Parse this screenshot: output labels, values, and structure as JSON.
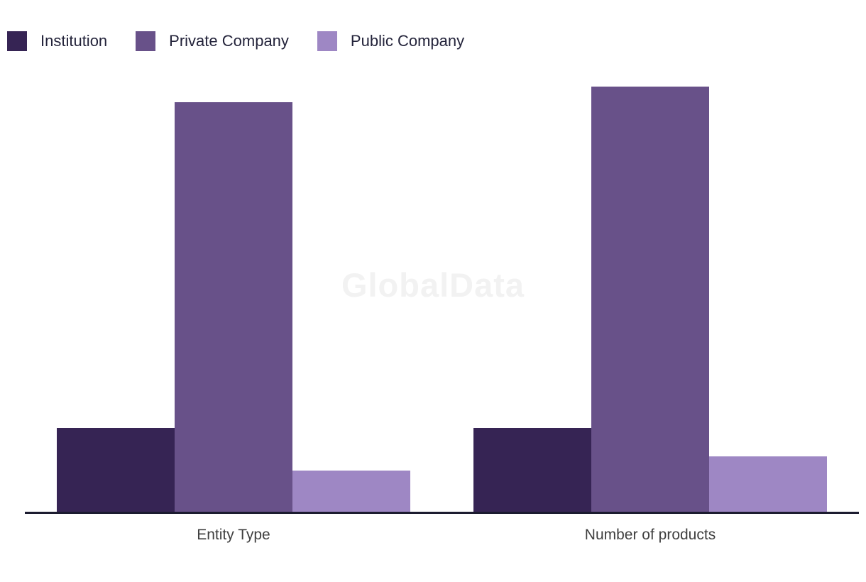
{
  "watermark": "GlobalData",
  "legend": [
    {
      "label": "Institution",
      "color": "#362454"
    },
    {
      "label": "Private Company",
      "color": "#685189"
    },
    {
      "label": "Public Company",
      "color": "#9E87C4"
    }
  ],
  "chart_data": {
    "type": "bar",
    "categories": [
      "Entity Type",
      "Number of products"
    ],
    "series": [
      {
        "name": "Institution",
        "color": "#362454",
        "values": [
          19.8,
          19.8
        ]
      },
      {
        "name": "Private Company",
        "color": "#685189",
        "values": [
          96.3,
          100
        ]
      },
      {
        "name": "Public Company",
        "color": "#9E87C4",
        "values": [
          9.8,
          13.2
        ]
      }
    ],
    "title": "",
    "xlabel": "",
    "ylabel": "",
    "ylim": [
      0,
      100
    ],
    "grid": false,
    "y_axis_visible": false,
    "legend_position": "top-left",
    "note": "No y-axis or data labels shown; values are relative bar heights normalized to tallest bar = 100"
  },
  "colors": {
    "background": "#FFFFFF",
    "axis_line": "#1C1C30",
    "legend_text": "#23233A",
    "category_label_text": "#3F3F3F",
    "watermark_text": "#F2F2F2"
  }
}
